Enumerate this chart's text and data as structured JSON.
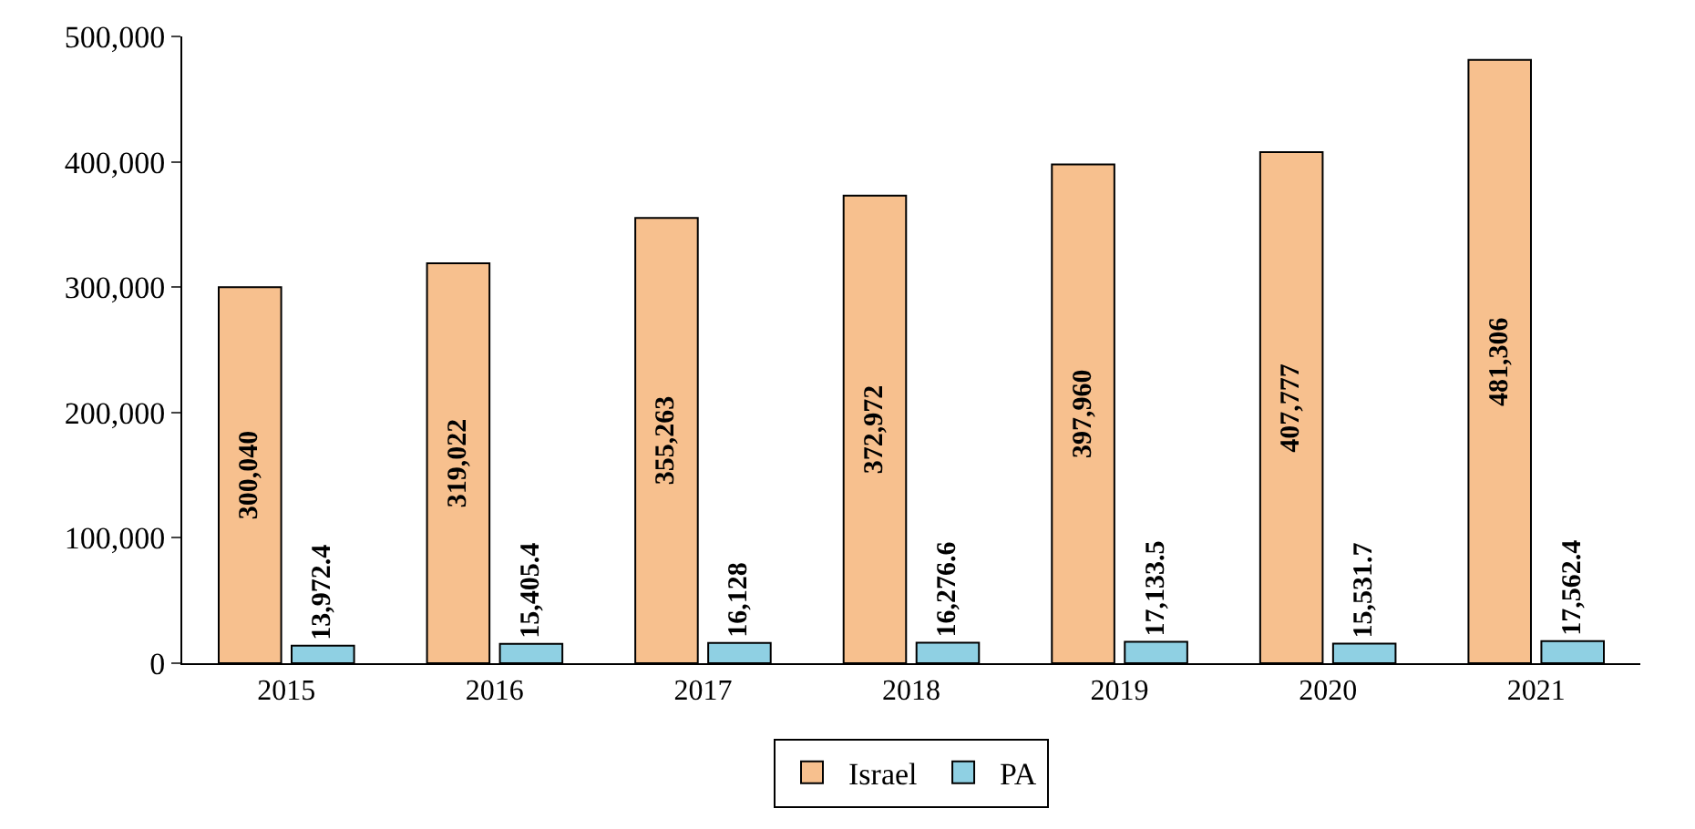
{
  "chart_data": {
    "type": "bar",
    "categories": [
      "2015",
      "2016",
      "2017",
      "2018",
      "2019",
      "2020",
      "2021"
    ],
    "series": [
      {
        "name": "Israel",
        "color": "#f7c08e",
        "values": [
          300040,
          319022,
          355263,
          372972,
          397960,
          407777,
          481306
        ],
        "value_labels": [
          "300,040",
          "319,022",
          "355,263",
          "372,972",
          "397,960",
          "407,777",
          "481,306"
        ]
      },
      {
        "name": "PA",
        "color": "#8fd0e3",
        "values": [
          13972.4,
          15405.4,
          16128,
          16276.6,
          17133.5,
          15531.7,
          17562.4
        ],
        "value_labels": [
          "13,972.4",
          "15,405.4",
          "16,128",
          "16,276.6",
          "17,133.5",
          "15,531.7",
          "17,562.4"
        ]
      }
    ],
    "ylim": [
      0,
      500000
    ],
    "yticks": [
      {
        "value": 0,
        "label": "0"
      },
      {
        "value": 100000,
        "label": "100,000"
      },
      {
        "value": 200000,
        "label": "200,000"
      },
      {
        "value": 300000,
        "label": "300,000"
      },
      {
        "value": 400000,
        "label": "400,000"
      },
      {
        "value": 500000,
        "label": "500,000"
      }
    ],
    "legend": "bottom"
  }
}
